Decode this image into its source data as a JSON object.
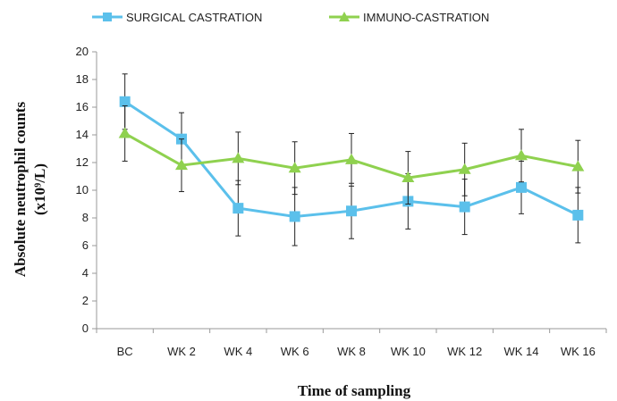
{
  "chart_data": {
    "type": "line",
    "xlabel": "Time of sampling",
    "ylabel_line1": "Absolute neutrophil counts",
    "ylabel_line2": "(x10⁹/L)",
    "ylim": [
      0,
      20
    ],
    "yticks": [
      "0",
      "2",
      "4",
      "6",
      "8",
      "10",
      "12",
      "14",
      "16",
      "18",
      "20"
    ],
    "categories": [
      "BC",
      "WK 2",
      "WK 4",
      "WK 6",
      "WK 8",
      "WK 10",
      "WK 12",
      "WK 14",
      "WK 16"
    ],
    "grid": false,
    "legend_position": "top",
    "series": [
      {
        "name": "SURGICAL CASTRATION",
        "color": "#5bc0eb",
        "marker": "square",
        "values": [
          16.4,
          13.7,
          8.7,
          8.1,
          8.5,
          9.2,
          8.8,
          10.2,
          8.2
        ],
        "error": [
          2.0,
          1.9,
          2.0,
          2.1,
          2.0,
          2.0,
          2.0,
          1.9,
          2.0
        ]
      },
      {
        "name": "IMMUNO-CASTRATION",
        "color": "#8fd14f",
        "marker": "triangle",
        "values": [
          14.1,
          11.8,
          12.3,
          11.6,
          12.2,
          10.9,
          11.5,
          12.5,
          11.7
        ],
        "error": [
          2.0,
          1.9,
          1.9,
          1.9,
          1.9,
          1.9,
          1.9,
          1.9,
          1.9
        ]
      }
    ]
  }
}
